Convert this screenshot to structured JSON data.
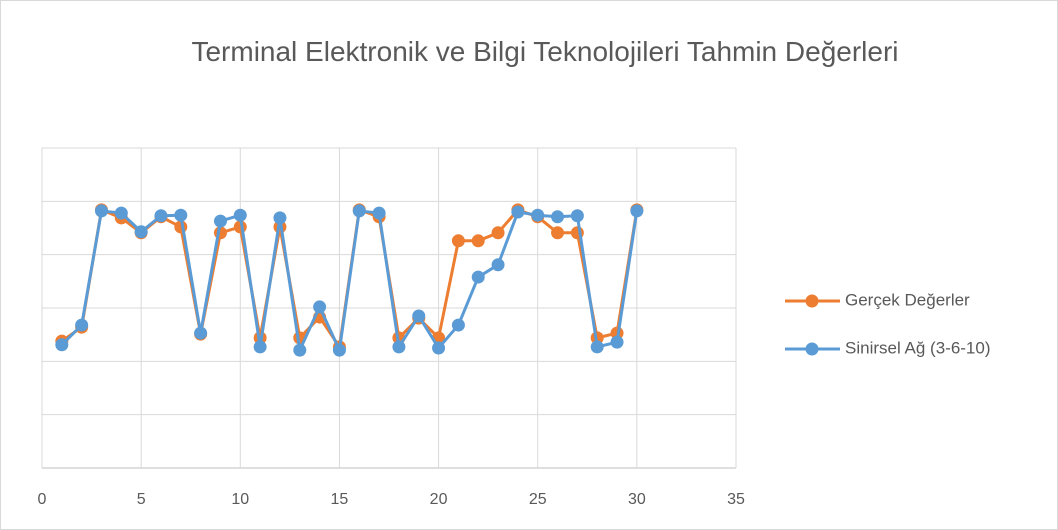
{
  "chart_data": {
    "type": "scatter-line",
    "title": "Terminal Elektronik ve Bilgi Teknolojileri Tahmin Değerleri",
    "x": [
      1,
      2,
      3,
      4,
      5,
      6,
      7,
      8,
      9,
      10,
      11,
      12,
      13,
      14,
      15,
      16,
      17,
      18,
      19,
      20,
      21,
      22,
      23,
      24,
      25,
      26,
      27,
      28,
      29,
      30
    ],
    "series": [
      {
        "name": "Gerçek Değerler",
        "color": "#ed7d31",
        "values": [
          2.38,
          2.64,
          4.84,
          4.69,
          4.41,
          4.71,
          4.52,
          2.51,
          4.41,
          4.52,
          2.44,
          4.52,
          2.44,
          2.83,
          2.27,
          4.84,
          4.71,
          2.44,
          2.81,
          2.44,
          4.26,
          4.26,
          4.41,
          4.84,
          4.71,
          4.41,
          4.41,
          2.44,
          2.53,
          4.84
        ]
      },
      {
        "name": "Sinirsel Ağ (3-6-10)",
        "color": "#5b9bd5",
        "values": [
          2.31,
          2.68,
          4.82,
          4.78,
          4.43,
          4.73,
          4.74,
          2.53,
          4.63,
          4.74,
          2.27,
          4.69,
          2.21,
          3.02,
          2.21,
          4.82,
          4.78,
          2.27,
          2.85,
          2.25,
          2.68,
          3.58,
          3.81,
          4.8,
          4.74,
          4.71,
          4.73,
          2.27,
          2.36,
          4.82
        ]
      }
    ],
    "xlim": [
      0,
      35
    ],
    "xticks": [
      0,
      5,
      10,
      15,
      20,
      25,
      30,
      35
    ],
    "ylim": [
      0,
      6
    ],
    "ygrid": [
      0,
      1,
      2,
      3,
      4,
      5,
      6
    ],
    "grid": true,
    "legend": "right"
  }
}
